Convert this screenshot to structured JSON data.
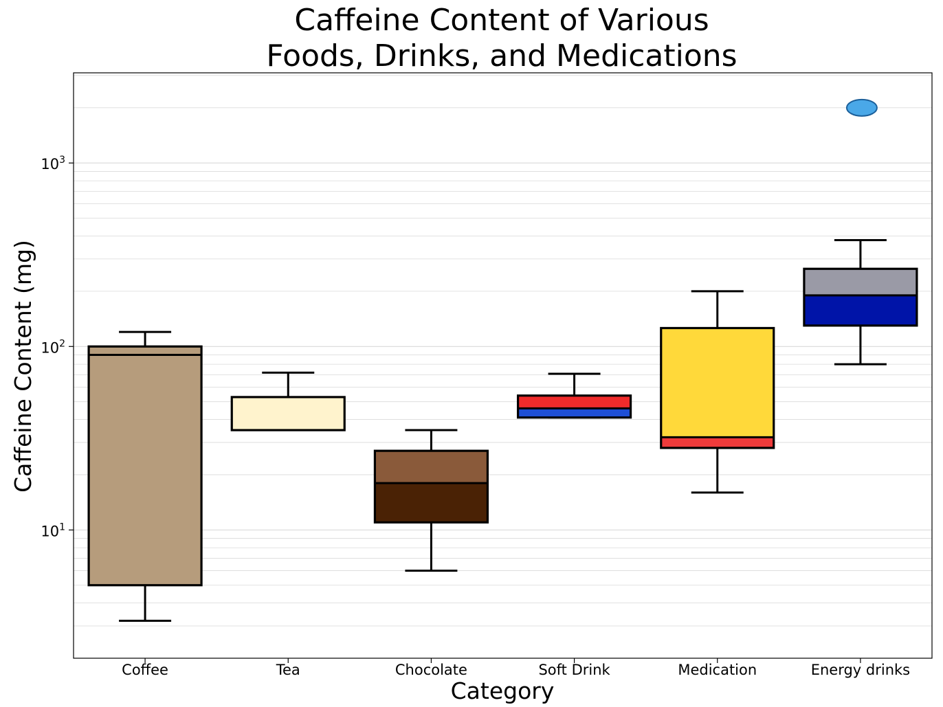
{
  "chart_data": {
    "type": "box",
    "title_lines": [
      "Caffeine Content of Various",
      "Foods, Drinks, and Medications"
    ],
    "xlabel": "Category",
    "ylabel": "Caffeine Content (mg)",
    "yscale": "log",
    "ylim": [
      2.0,
      3100
    ],
    "y_ticks": [
      {
        "value": 10,
        "base": "10",
        "exp": "1"
      },
      {
        "value": 100,
        "base": "10",
        "exp": "2"
      },
      {
        "value": 1000,
        "base": "10",
        "exp": "3"
      }
    ],
    "grid": "horizontal-minor",
    "categories": [
      "Coffee",
      "Tea",
      "Chocolate",
      "Soft Drink",
      "Medication",
      "Energy drinks"
    ],
    "boxes": [
      {
        "name": "Coffee",
        "whisker_low": 3.2,
        "q1": 5.0,
        "median": 90,
        "q3": 100,
        "whisker_high": 120,
        "fill": "#b69c7c",
        "fill2": "#b69c7c",
        "outliers": []
      },
      {
        "name": "Tea",
        "whisker_low": 35,
        "q1": 35,
        "median": 35,
        "q3": 53,
        "whisker_high": 72,
        "fill": "#fff3cd",
        "fill2": "#fff3cd",
        "outliers": []
      },
      {
        "name": "Chocolate",
        "whisker_low": 6,
        "q1": 11,
        "median": 18,
        "q3": 27,
        "whisker_high": 35,
        "fill": "#4a2205",
        "fill2": "#8a5a3a",
        "outliers": []
      },
      {
        "name": "Soft Drink",
        "whisker_low": 41,
        "q1": 41,
        "median": 46,
        "q3": 54,
        "whisker_high": 71,
        "fill": "#1e4fd6",
        "fill2": "#ef2b2b",
        "outliers": []
      },
      {
        "name": "Medication",
        "whisker_low": 16,
        "q1": 28,
        "median": 32,
        "q3": 126,
        "whisker_high": 200,
        "fill": "#ef3b3b",
        "fill2": "#ffd93a",
        "outliers": []
      },
      {
        "name": "Energy drinks",
        "whisker_low": 80,
        "q1": 130,
        "median": 190,
        "q3": 265,
        "whisker_high": 380,
        "fill": "#0014a8",
        "fill2": "#9a9aa6",
        "outliers": [
          2000
        ]
      }
    ],
    "colors": {
      "frame": "#000000",
      "grid": "#d9d9d9",
      "outlier": "#4aa8e8"
    }
  }
}
